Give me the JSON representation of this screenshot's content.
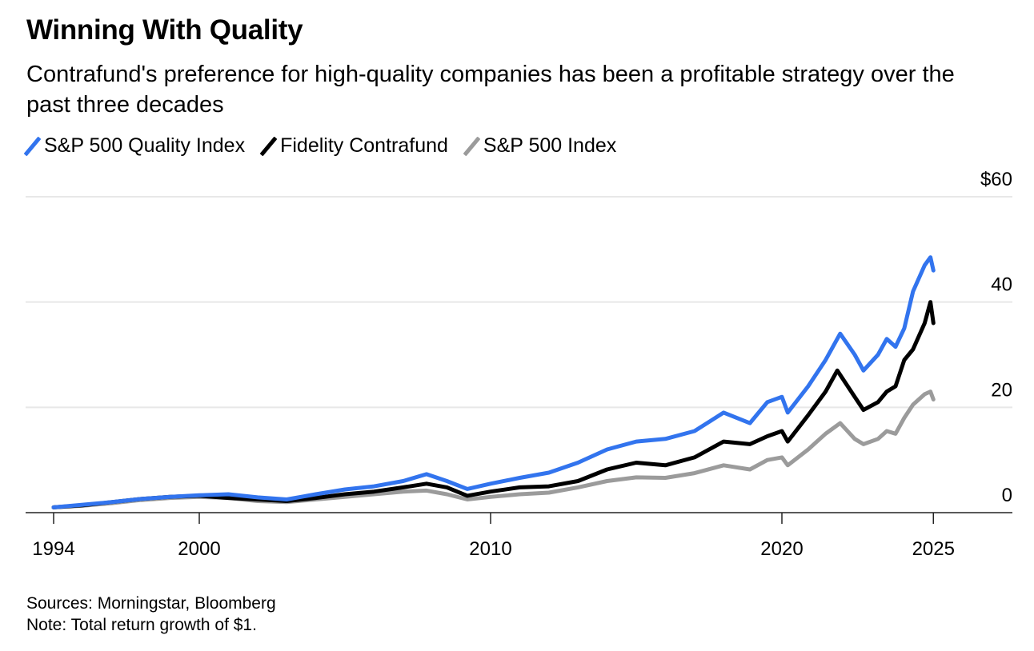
{
  "title": "Winning With Quality",
  "subtitle": "Contrafund's preference for high-quality companies has been a profitable strategy over the past three decades",
  "footer": {
    "sources": "Sources: Morningstar, Bloomberg",
    "note": "Note: Total return growth of $1."
  },
  "chart_data": {
    "type": "line",
    "title": "Winning With Quality",
    "xlabel": "",
    "ylabel": "",
    "ylim": [
      0,
      60
    ],
    "xlim": [
      1994.1,
      2027.0
    ],
    "grid": true,
    "legend_placement": "top-left",
    "y_ticks": [
      {
        "value": 0,
        "label": "0"
      },
      {
        "value": 20,
        "label": "20"
      },
      {
        "value": 40,
        "label": "40"
      },
      {
        "value": 60,
        "label": "$60"
      }
    ],
    "x_ticks": [
      {
        "value": 1995.0,
        "label": "1994"
      },
      {
        "value": 2000,
        "label": "2000"
      },
      {
        "value": 2010,
        "label": "2010"
      },
      {
        "value": 2020,
        "label": "2020"
      },
      {
        "value": 2025.2,
        "label": "2025"
      }
    ],
    "series": [
      {
        "name": "S&P 500 Quality Index",
        "color": "#3274ee",
        "points": [
          [
            1995,
            1
          ],
          [
            1996,
            1.5
          ],
          [
            1997,
            2
          ],
          [
            1998,
            2.6
          ],
          [
            1999,
            3.0
          ],
          [
            2000,
            3.3
          ],
          [
            2001,
            3.5
          ],
          [
            2002,
            2.9
          ],
          [
            2003,
            2.5
          ],
          [
            2004,
            3.5
          ],
          [
            2005,
            4.4
          ],
          [
            2006,
            5
          ],
          [
            2007,
            6
          ],
          [
            2007.8,
            7.3
          ],
          [
            2008.5,
            6
          ],
          [
            2009.2,
            4.5
          ],
          [
            2010,
            5.5
          ],
          [
            2011,
            6.6
          ],
          [
            2012,
            7.6
          ],
          [
            2013,
            9.5
          ],
          [
            2014,
            12
          ],
          [
            2015,
            13.5
          ],
          [
            2016,
            14
          ],
          [
            2017,
            15.5
          ],
          [
            2018,
            19
          ],
          [
            2018.9,
            17
          ],
          [
            2019.5,
            21
          ],
          [
            2020,
            22
          ],
          [
            2020.2,
            19
          ],
          [
            2020.9,
            24
          ],
          [
            2021.5,
            29
          ],
          [
            2022,
            34
          ],
          [
            2022.5,
            30
          ],
          [
            2022.8,
            27
          ],
          [
            2023.3,
            30
          ],
          [
            2023.6,
            33
          ],
          [
            2023.9,
            31.5
          ],
          [
            2024.2,
            35
          ],
          [
            2024.5,
            42
          ],
          [
            2024.9,
            47
          ],
          [
            2025.1,
            48.5
          ],
          [
            2025.2,
            46
          ]
        ]
      },
      {
        "name": "Fidelity Contrafund",
        "color": "#000000",
        "points": [
          [
            1995,
            1
          ],
          [
            1996,
            1.4
          ],
          [
            1997,
            2
          ],
          [
            1998,
            2.6
          ],
          [
            1999,
            3.0
          ],
          [
            2000,
            3.2
          ],
          [
            2001,
            2.8
          ],
          [
            2002,
            2.5
          ],
          [
            2003,
            2.2
          ],
          [
            2004,
            2.8
          ],
          [
            2005,
            3.5
          ],
          [
            2006,
            4
          ],
          [
            2007,
            4.8
          ],
          [
            2007.8,
            5.5
          ],
          [
            2008.5,
            4.8
          ],
          [
            2009.2,
            3.2
          ],
          [
            2010,
            4
          ],
          [
            2011,
            4.8
          ],
          [
            2012,
            5
          ],
          [
            2013,
            6
          ],
          [
            2014,
            8.2
          ],
          [
            2015,
            9.5
          ],
          [
            2016,
            9
          ],
          [
            2017,
            10.5
          ],
          [
            2018,
            13.5
          ],
          [
            2018.9,
            13
          ],
          [
            2019.5,
            14.5
          ],
          [
            2020,
            15.5
          ],
          [
            2020.2,
            13.5
          ],
          [
            2020.9,
            18.5
          ],
          [
            2021.5,
            23
          ],
          [
            2021.9,
            27
          ],
          [
            2022.5,
            22
          ],
          [
            2022.8,
            19.5
          ],
          [
            2023.3,
            21
          ],
          [
            2023.6,
            23
          ],
          [
            2023.9,
            24
          ],
          [
            2024.2,
            29
          ],
          [
            2024.5,
            31
          ],
          [
            2024.9,
            36
          ],
          [
            2025.1,
            40
          ],
          [
            2025.2,
            36
          ]
        ]
      },
      {
        "name": "S&P 500 Index",
        "color": "#9b9b9b",
        "points": [
          [
            1995,
            1
          ],
          [
            1996,
            1.3
          ],
          [
            1997,
            1.8
          ],
          [
            1998,
            2.4
          ],
          [
            1999,
            2.8
          ],
          [
            2000,
            3
          ],
          [
            2001,
            2.8
          ],
          [
            2002,
            2.2
          ],
          [
            2003,
            2.0
          ],
          [
            2004,
            2.5
          ],
          [
            2005,
            3
          ],
          [
            2006,
            3.5
          ],
          [
            2007,
            4
          ],
          [
            2007.8,
            4.2
          ],
          [
            2008.5,
            3.5
          ],
          [
            2009.2,
            2.5
          ],
          [
            2010,
            3
          ],
          [
            2011,
            3.5
          ],
          [
            2012,
            3.8
          ],
          [
            2013,
            4.8
          ],
          [
            2014,
            6
          ],
          [
            2015,
            6.7
          ],
          [
            2016,
            6.6
          ],
          [
            2017,
            7.5
          ],
          [
            2018,
            9
          ],
          [
            2018.9,
            8.2
          ],
          [
            2019.5,
            10
          ],
          [
            2020,
            10.5
          ],
          [
            2020.2,
            9
          ],
          [
            2020.9,
            12
          ],
          [
            2021.5,
            15
          ],
          [
            2022,
            17
          ],
          [
            2022.5,
            14
          ],
          [
            2022.8,
            13
          ],
          [
            2023.3,
            14
          ],
          [
            2023.6,
            15.5
          ],
          [
            2023.9,
            15
          ],
          [
            2024.2,
            18
          ],
          [
            2024.5,
            20.5
          ],
          [
            2024.9,
            22.5
          ],
          [
            2025.1,
            23
          ],
          [
            2025.2,
            21.5
          ]
        ]
      }
    ]
  }
}
